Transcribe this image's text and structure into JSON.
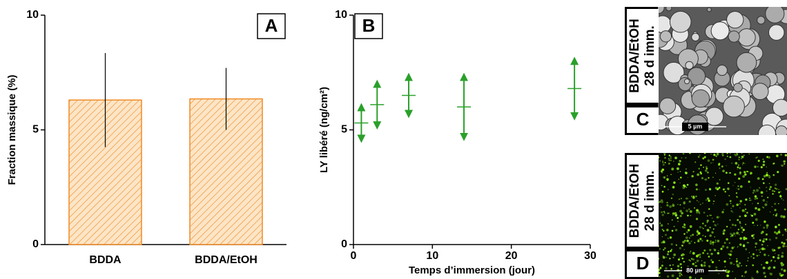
{
  "chart_data": [
    {
      "type": "bar",
      "panel_label": "A",
      "y_label": "Fraction massique (%)",
      "categories": [
        "BDDA",
        "BDDA/EtOH"
      ],
      "values": [
        6.3,
        6.35
      ],
      "errors": [
        2.05,
        1.35
      ],
      "color": "#f08a24",
      "ylim": [
        0,
        10
      ],
      "yticks": [
        0,
        5,
        10
      ]
    },
    {
      "type": "scatter",
      "panel_label": "B",
      "y_label": "LY libéré (ng/cm²)",
      "x_label": "Temps d’immersion (jour)",
      "x": [
        1,
        3,
        7,
        14,
        28
      ],
      "values": [
        5.3,
        6.1,
        6.5,
        6.0,
        6.8
      ],
      "errors": [
        0.78,
        1.0,
        0.9,
        1.4,
        1.3
      ],
      "color": "#2aa02a",
      "xlim": [
        0,
        30
      ],
      "xticks": [
        0,
        10,
        20,
        30
      ],
      "ylim": [
        0,
        10
      ],
      "yticks": [
        0,
        5,
        10
      ]
    }
  ],
  "image_panels": [
    {
      "label_lines": [
        "BDDA/EtOH",
        "28 d imm."
      ],
      "letter": "C",
      "scale": "5 µm"
    },
    {
      "label_lines": [
        "BDDA/EtOH",
        "28 d imm."
      ],
      "letter": "D",
      "scale": "80 µm"
    }
  ]
}
